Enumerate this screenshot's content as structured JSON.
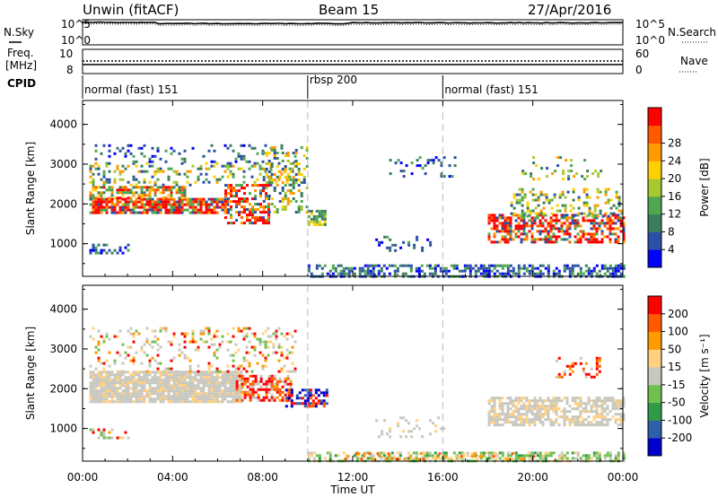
{
  "header": {
    "station": "Unwin (fitACF)",
    "beam": "Beam 15",
    "date": "27/Apr/2016"
  },
  "noise_panel": {
    "left_label": "N.Sky",
    "right_label": "N.Search",
    "left_ticks": [
      "10^5",
      "10^0"
    ],
    "right_ticks": [
      "10^5",
      "10^0"
    ]
  },
  "freq_panel": {
    "left_label_line1": "Freq.",
    "left_label_line2": "[MHz]",
    "left_ticks": [
      "10",
      "8"
    ],
    "right_label": "Nave",
    "right_ticks": [
      "60",
      "0"
    ]
  },
  "cpid": {
    "label": "CPID",
    "segments": [
      {
        "name": "normal (fast) 151",
        "start_hour": 0
      },
      {
        "name": "rbsp 200",
        "start_hour": 10
      },
      {
        "name": "normal (fast) 151",
        "start_hour": 16
      }
    ]
  },
  "chart_data": [
    {
      "type": "heatmap",
      "name": "power",
      "ylabel": "Slant Range [km]",
      "xlabel": "Time UT",
      "x_ticks": [
        "00:00",
        "04:00",
        "08:00",
        "12:00",
        "16:00",
        "20:00",
        "00:00"
      ],
      "x_range_hours": [
        0,
        24
      ],
      "y_ticks": [
        1000,
        2000,
        3000,
        4000
      ],
      "y_range_km": [
        180,
        4600
      ],
      "colorbar": {
        "label": "Power [dB]",
        "ticks": [
          "4",
          "8",
          "12",
          "16",
          "20",
          "24",
          "28"
        ],
        "range": [
          0,
          30
        ],
        "colors": [
          "#0000ff",
          "#2c4fa8",
          "#3c7d5e",
          "#4fa84f",
          "#a8c830",
          "#ffd000",
          "#ff9a00",
          "#ff5a00",
          "#ff0000"
        ]
      }
    },
    {
      "type": "heatmap",
      "name": "velocity",
      "ylabel": "Slant Range [km]",
      "xlabel": "Time UT",
      "x_ticks": [
        "00:00",
        "04:00",
        "08:00",
        "12:00",
        "16:00",
        "20:00",
        "00:00"
      ],
      "x_range_hours": [
        0,
        24
      ],
      "y_ticks": [
        1000,
        2000,
        3000,
        4000
      ],
      "y_range_km": [
        180,
        4600
      ],
      "colorbar": {
        "label": "Velocity [m s⁻¹]",
        "ticks": [
          "200",
          "100",
          "50",
          "15",
          "-15",
          "-50",
          "-100",
          "-200"
        ],
        "range": [
          -250,
          250
        ],
        "colors": [
          "#ff0000",
          "#ff5a00",
          "#ff9a00",
          "#ffd080",
          "#c8c8c0",
          "#70c050",
          "#2f9a4a",
          "#2f5fa8",
          "#0000cc"
        ]
      }
    }
  ],
  "scatter_blobs": [
    {
      "panel": 0,
      "t0": 0.3,
      "t1": 6.5,
      "r0": 1780,
      "r1": 2150,
      "type": "band_red",
      "dens": 0.85
    },
    {
      "panel": 0,
      "t0": 0.3,
      "t1": 4.5,
      "r0": 2150,
      "r1": 2450,
      "type": "mix_orange",
      "dens": 0.6
    },
    {
      "panel": 0,
      "t0": 0.3,
      "t1": 9.5,
      "r0": 2450,
      "r1": 3050,
      "type": "mix_mid",
      "dens": 0.25
    },
    {
      "panel": 0,
      "t0": 0.3,
      "t1": 9.5,
      "r0": 3050,
      "r1": 3500,
      "type": "mix_low",
      "dens": 0.15
    },
    {
      "panel": 0,
      "t0": 0.3,
      "t1": 2.0,
      "r0": 750,
      "r1": 1000,
      "type": "mix_low",
      "dens": 0.35
    },
    {
      "panel": 0,
      "t0": 6.3,
      "t1": 8.3,
      "r0": 1550,
      "r1": 2500,
      "type": "band_red",
      "dens": 0.55
    },
    {
      "panel": 0,
      "t0": 8.0,
      "t1": 10.0,
      "r0": 1800,
      "r1": 3450,
      "type": "mix_mid",
      "dens": 0.35
    },
    {
      "panel": 0,
      "t0": 10.0,
      "t1": 10.8,
      "r0": 1450,
      "r1": 1850,
      "type": "mix_green",
      "dens": 0.7
    },
    {
      "panel": 0,
      "t0": 10.0,
      "t1": 24.0,
      "r0": 200,
      "r1": 480,
      "type": "mix_low",
      "dens": 0.55
    },
    {
      "panel": 0,
      "t0": 13.0,
      "t1": 15.5,
      "r0": 800,
      "r1": 1200,
      "type": "mix_low",
      "dens": 0.25
    },
    {
      "panel": 0,
      "t0": 13.5,
      "t1": 16.5,
      "r0": 2700,
      "r1": 3200,
      "type": "mix_low",
      "dens": 0.18
    },
    {
      "panel": 0,
      "t0": 18.0,
      "t1": 24.0,
      "r0": 1050,
      "r1": 1750,
      "type": "band_red",
      "dens": 0.6
    },
    {
      "panel": 0,
      "t0": 19.0,
      "t1": 24.0,
      "r0": 1700,
      "r1": 2400,
      "type": "mix_mid",
      "dens": 0.3
    },
    {
      "panel": 0,
      "t0": 19.5,
      "t1": 23.0,
      "r0": 2600,
      "r1": 3200,
      "type": "mix_mid",
      "dens": 0.18
    },
    {
      "panel": 1,
      "t0": 0.3,
      "t1": 7.0,
      "r0": 1650,
      "r1": 2450,
      "type": "grey",
      "dens": 0.9
    },
    {
      "panel": 1,
      "t0": 0.3,
      "t1": 9.5,
      "r0": 2450,
      "r1": 3550,
      "type": "mix_vel",
      "dens": 0.2
    },
    {
      "panel": 1,
      "t0": 6.8,
      "t1": 9.3,
      "r0": 1700,
      "r1": 2350,
      "type": "vel_red",
      "dens": 0.6
    },
    {
      "panel": 1,
      "t0": 9.0,
      "t1": 10.8,
      "r0": 1550,
      "r1": 2000,
      "type": "vel_blue",
      "dens": 0.55
    },
    {
      "panel": 1,
      "t0": 0.3,
      "t1": 2.0,
      "r0": 750,
      "r1": 1000,
      "type": "mix_vel",
      "dens": 0.3
    },
    {
      "panel": 1,
      "t0": 10.0,
      "t1": 24.0,
      "r0": 200,
      "r1": 420,
      "type": "vel_green",
      "dens": 0.55
    },
    {
      "panel": 1,
      "t0": 11.5,
      "t1": 20.0,
      "r0": 220,
      "r1": 400,
      "type": "vel_orange",
      "dens": 0.25
    },
    {
      "panel": 1,
      "t0": 18.0,
      "t1": 24.0,
      "r0": 1100,
      "r1": 1800,
      "type": "grey",
      "dens": 0.7
    },
    {
      "panel": 1,
      "t0": 21.0,
      "t1": 23.0,
      "r0": 2300,
      "r1": 2800,
      "type": "vel_red",
      "dens": 0.3
    },
    {
      "panel": 1,
      "t0": 13.0,
      "t1": 16.0,
      "r0": 800,
      "r1": 1300,
      "type": "grey",
      "dens": 0.2
    }
  ]
}
